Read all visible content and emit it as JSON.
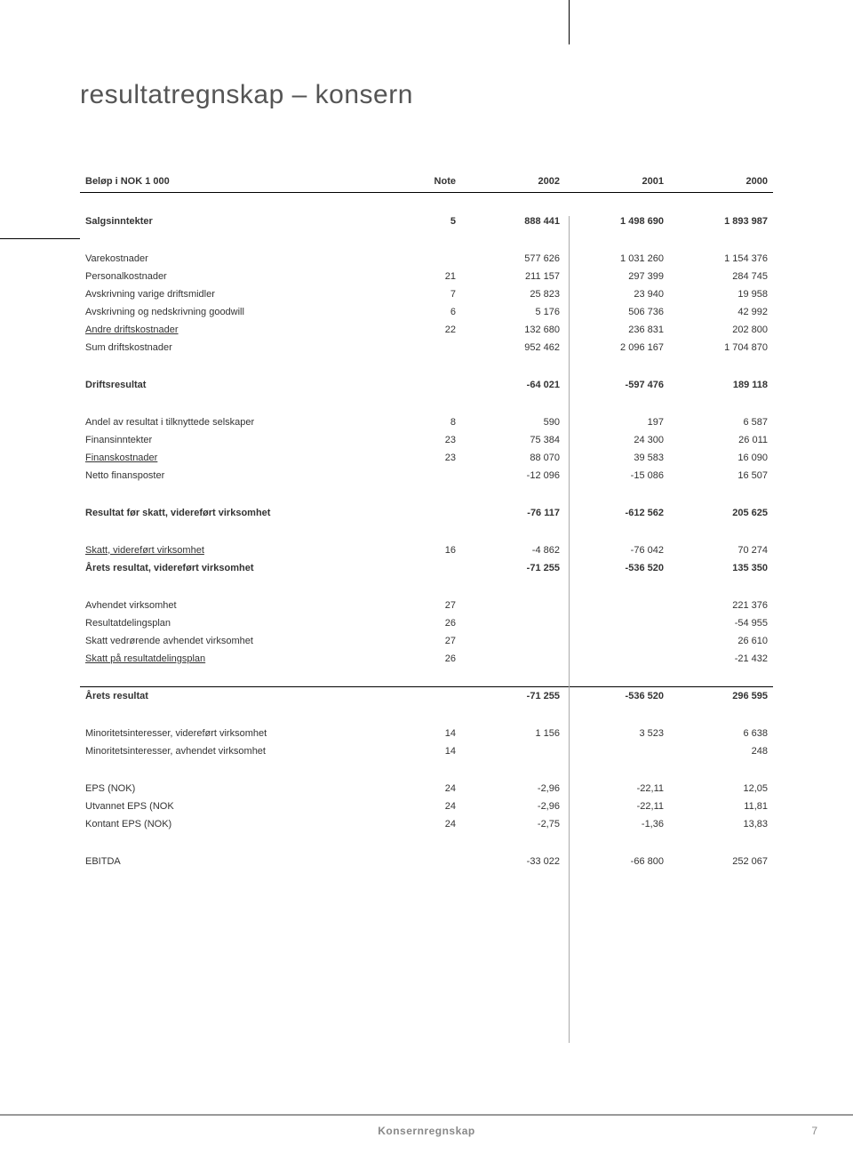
{
  "page": {
    "title": "resultatregnskap – konsern",
    "footer_title": "Konsernregnskap",
    "page_number": "7"
  },
  "table": {
    "header": {
      "col0": "Beløp i NOK 1 000",
      "col1": "Note",
      "col2": "2002",
      "col3": "2001",
      "col4": "2000"
    },
    "rows": [
      {
        "k": "spacer"
      },
      {
        "k": "bold",
        "label": "Salgsinntekter",
        "note": "5",
        "c2": "888 441",
        "c3": "1 498 690",
        "c4": "1 893 987"
      },
      {
        "k": "spacer"
      },
      {
        "label": "Varekostnader",
        "note": "",
        "c2": "577 626",
        "c3": "1 031 260",
        "c4": "1 154 376"
      },
      {
        "label": "Personalkostnader",
        "note": "21",
        "c2": "211 157",
        "c3": "297 399",
        "c4": "284 745"
      },
      {
        "label": "Avskrivning varige driftsmidler",
        "note": "7",
        "c2": "25 823",
        "c3": "23 940",
        "c4": "19 958"
      },
      {
        "label": "Avskrivning og nedskrivning goodwill",
        "note": "6",
        "c2": "5 176",
        "c3": "506 736",
        "c4": "42 992"
      },
      {
        "k": "underline",
        "label": "Andre driftskostnader",
        "note": "22",
        "c2": "132 680",
        "c3": "236 831",
        "c4": "202 800"
      },
      {
        "label": "Sum driftskostnader",
        "note": "",
        "c2": "952 462",
        "c3": "2 096 167",
        "c4": "1 704 870"
      },
      {
        "k": "spacer"
      },
      {
        "k": "bold",
        "label": "Driftsresultat",
        "note": "",
        "c2": "-64 021",
        "c3": "-597 476",
        "c4": "189 118"
      },
      {
        "k": "spacer"
      },
      {
        "label": "Andel av resultat i tilknyttede selskaper",
        "note": "8",
        "c2": "590",
        "c3": "197",
        "c4": "6 587"
      },
      {
        "label": "Finansinntekter",
        "note": "23",
        "c2": "75 384",
        "c3": "24 300",
        "c4": "26 011"
      },
      {
        "k": "underline",
        "label": "Finanskostnader",
        "note": "23",
        "c2": "88 070",
        "c3": "39 583",
        "c4": "16 090"
      },
      {
        "label": "Netto finansposter",
        "note": "",
        "c2": "-12 096",
        "c3": "-15 086",
        "c4": "16 507"
      },
      {
        "k": "spacer"
      },
      {
        "k": "bold",
        "label": "Resultat før skatt, videreført virksomhet",
        "note": "",
        "c2": "-76 117",
        "c3": "-612 562",
        "c4": "205 625"
      },
      {
        "k": "spacer"
      },
      {
        "k": "underline",
        "label": "Skatt, videreført virksomhet",
        "note": "16",
        "c2": "-4 862",
        "c3": "-76 042",
        "c4": "70 274"
      },
      {
        "k": "bold",
        "label": "Årets resultat, videreført virksomhet",
        "note": "",
        "c2": "-71 255",
        "c3": "-536 520",
        "c4": "135 350"
      },
      {
        "k": "spacer"
      },
      {
        "label": "Avhendet virksomhet",
        "note": "27",
        "c2": "",
        "c3": "",
        "c4": "221 376"
      },
      {
        "label": "Resultatdelingsplan",
        "note": "26",
        "c2": "",
        "c3": "",
        "c4": "-54 955"
      },
      {
        "label": "Skatt vedrørende avhendet virksomhet",
        "note": "27",
        "c2": "",
        "c3": "",
        "c4": "26 610"
      },
      {
        "k": "underline",
        "label": "Skatt på resultatdelingsplan",
        "note": "26",
        "c2": "",
        "c3": "",
        "c4": "-21 432"
      },
      {
        "k": "spacer"
      },
      {
        "k": "bold rule-above",
        "label": "Årets resultat",
        "note": "",
        "c2": "-71 255",
        "c3": "-536 520",
        "c4": "296 595"
      },
      {
        "k": "spacer"
      },
      {
        "label": "Minoritetsinteresser, videreført virksomhet",
        "note": "14",
        "c2": "1 156",
        "c3": "3 523",
        "c4": "6 638"
      },
      {
        "label": "Minoritetsinteresser, avhendet virksomhet",
        "note": "14",
        "c2": "",
        "c3": "",
        "c4": "248"
      },
      {
        "k": "spacer"
      },
      {
        "label": "EPS (NOK)",
        "note": "24",
        "c2": "-2,96",
        "c3": "-22,11",
        "c4": "12,05"
      },
      {
        "label": "Utvannet EPS (NOK",
        "note": "24",
        "c2": "-2,96",
        "c3": "-22,11",
        "c4": "11,81"
      },
      {
        "label": "Kontant EPS (NOK)",
        "note": "24",
        "c2": "-2,75",
        "c3": "-1,36",
        "c4": "13,83"
      },
      {
        "k": "spacer"
      },
      {
        "label": "EBITDA",
        "note": "",
        "c2": "-33 022",
        "c3": "-66 800",
        "c4": "252 067"
      }
    ]
  }
}
